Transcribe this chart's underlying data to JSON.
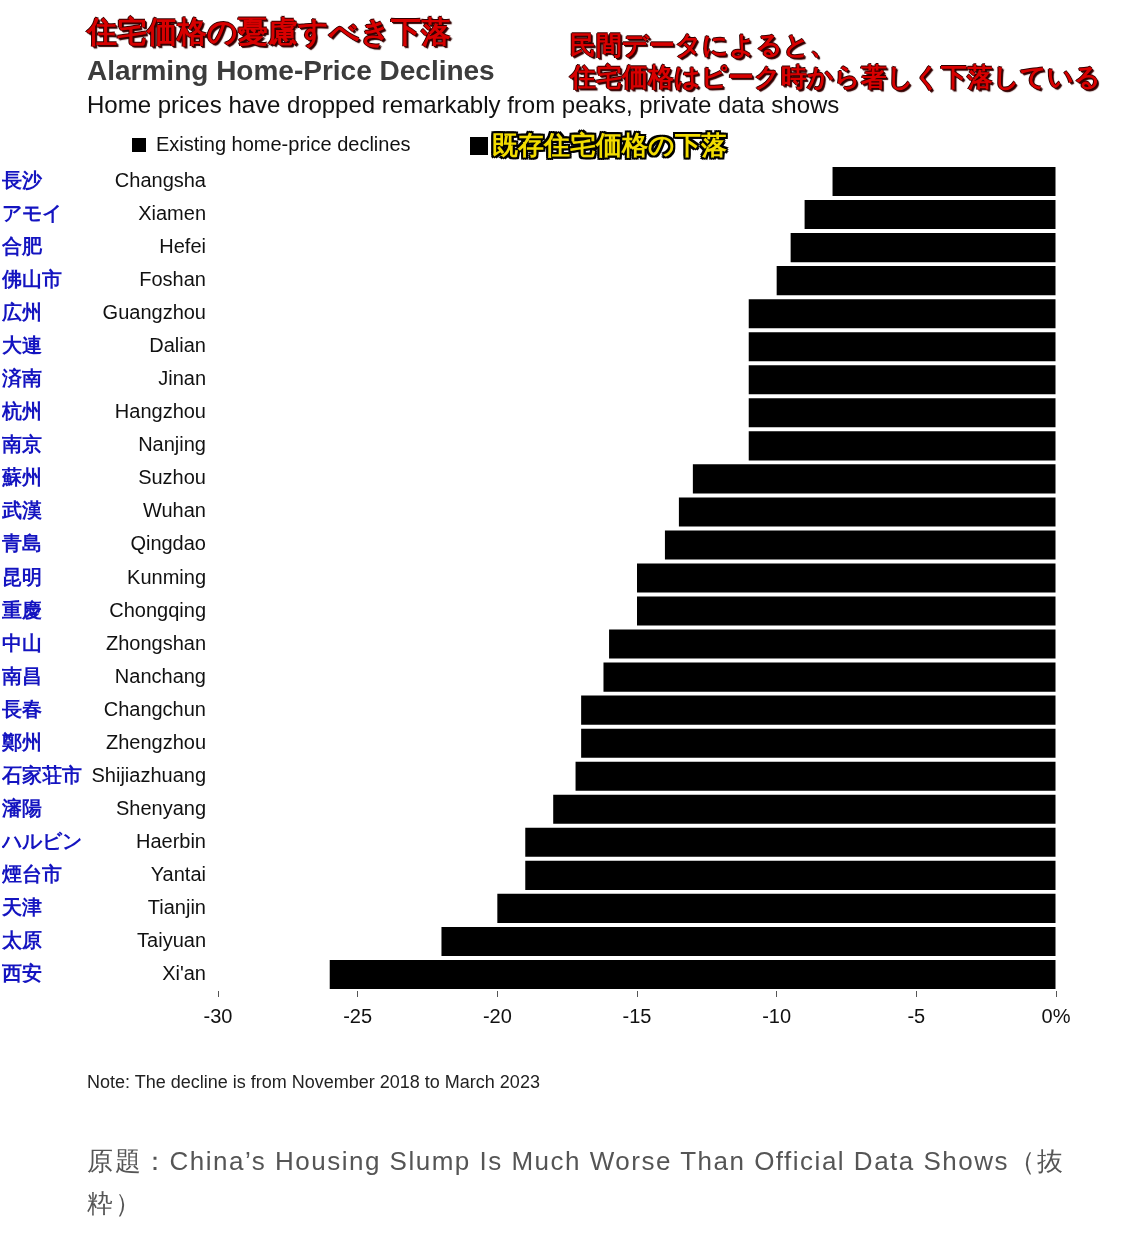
{
  "chart_data": {
    "type": "bar",
    "orientation": "horizontal",
    "title": "Alarming Home-Price Declines",
    "subtitle": "Home prices have dropped remarkably from peaks, private data shows",
    "categories": [
      "Changsha",
      "Xiamen",
      "Hefei",
      "Foshan",
      "Guangzhou",
      "Dalian",
      "Jinan",
      "Hangzhou",
      "Nanjing",
      "Suzhou",
      "Wuhan",
      "Qingdao",
      "Kunming",
      "Chongqing",
      "Zhongshan",
      "Nanchang",
      "Changchun",
      "Zhengzhou",
      "Shijiazhuang",
      "Shenyang",
      "Haerbin",
      "Yantai",
      "Tianjin",
      "Taiyuan",
      "Xi'an"
    ],
    "y2_categories": [
      "長沙",
      "アモイ",
      "合肥",
      "佛山市",
      "広州",
      "大連",
      "済南",
      "杭州",
      "南京",
      "蘇州",
      "武漢",
      "青島",
      "昆明",
      "重慶",
      "中山",
      "南昌",
      "長春",
      "鄭州",
      "石家荘市",
      "瀋陽",
      "ハルビン",
      "煙台市",
      "天津",
      "太原",
      "西安"
    ],
    "series": [
      {
        "name": "Existing home-price declines",
        "color": "#000000",
        "values": [
          -8,
          -9,
          -9.5,
          -10,
          -11,
          -11,
          -11,
          -11,
          -11,
          -13,
          -13.5,
          -14,
          -15,
          -15,
          -16,
          -16.2,
          -17,
          -17,
          -17.2,
          -18,
          -19,
          -19,
          -20,
          -22,
          -26
        ]
      }
    ],
    "xlim": [
      -30,
      0
    ],
    "xticks": [
      -30,
      -25,
      -20,
      -15,
      -10,
      -5,
      {
        "value": 0,
        "label": "0%"
      }
    ],
    "grid": false,
    "legend": "top left",
    "annotations": [
      "住宅価格の憂慮すべき下落",
      "民間データによると、",
      "住宅価格はピーク時から著しく下落している",
      "既存住宅価格の下落",
      "Note: The decline is from November 2018 to March 2023",
      "原題：China’s Housing Slump Is Much Worse Than Official Data Shows（抜粋）"
    ]
  }
}
